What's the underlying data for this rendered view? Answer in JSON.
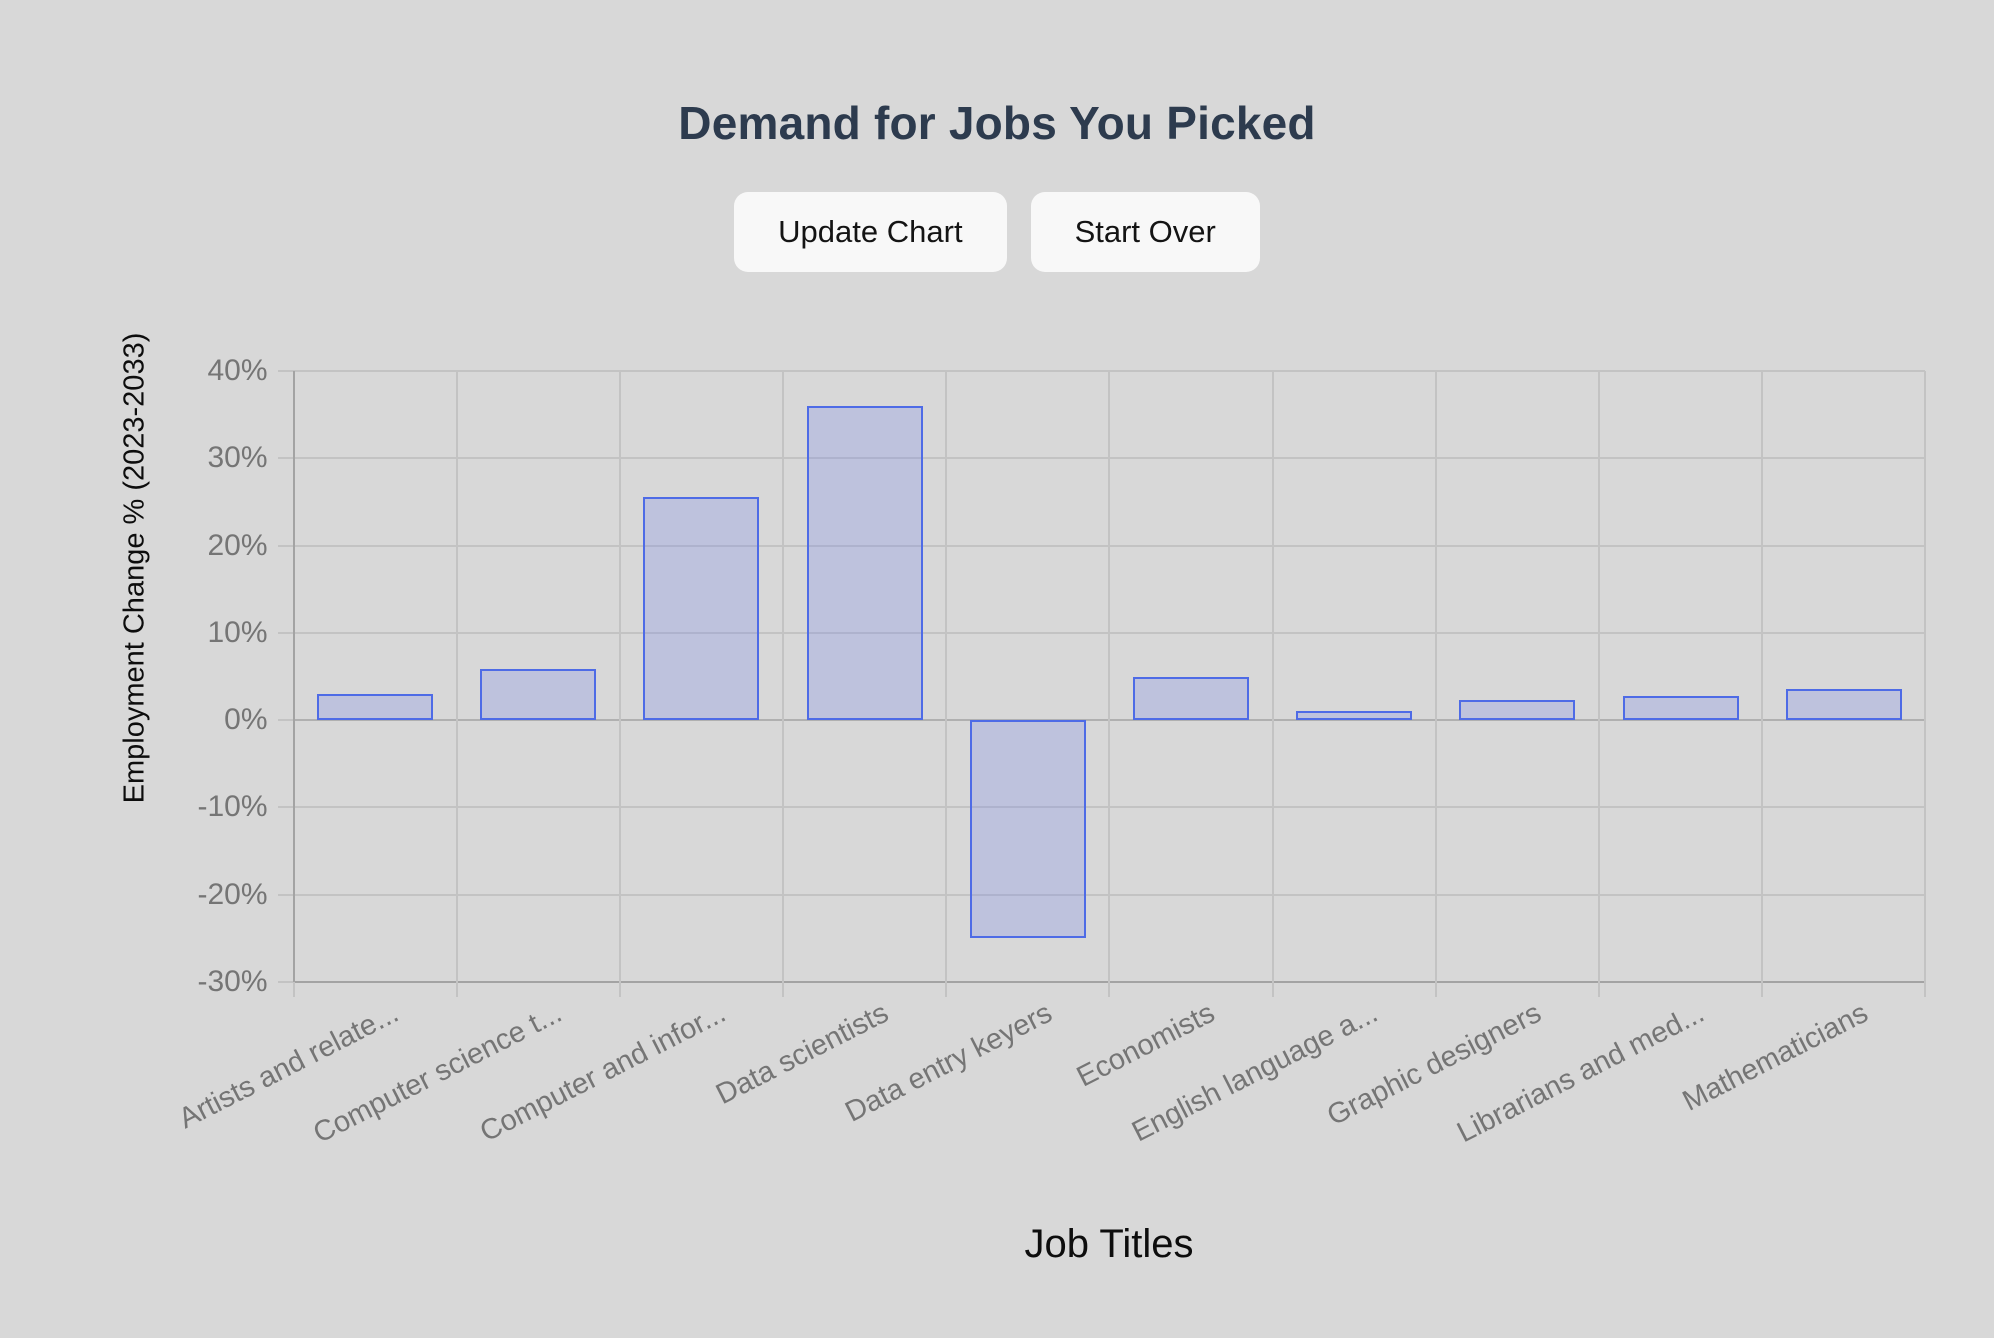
{
  "header": {
    "title": "Demand for Jobs You Picked"
  },
  "toolbar": {
    "update_chart_label": "Update Chart",
    "start_over_label": "Start Over"
  },
  "chart_data": {
    "type": "bar",
    "title": "",
    "xlabel": "Job Titles",
    "ylabel": "Employment Change % (2023-2033)",
    "categories": [
      "Artists and relate...",
      "Computer science t...",
      "Computer and infor...",
      "Data scientists",
      "Data entry keyers",
      "Economists",
      "English language a...",
      "Graphic designers",
      "Librarians and med...",
      "Mathematicians"
    ],
    "values": [
      3,
      5.9,
      25.6,
      36,
      -25,
      5,
      1,
      2.3,
      2.8,
      3.6
    ],
    "ylim": [
      -30,
      40
    ],
    "ytick_values": [
      40,
      30,
      20,
      10,
      0,
      -10,
      -20,
      -30
    ],
    "ytick_labels": [
      "40%",
      "30%",
      "20%",
      "10%",
      "0%",
      "-10%",
      "-20%",
      "-30%"
    ],
    "grid": true,
    "legend": "none",
    "colors": {
      "bar_fill": "rgba(99,117,240,0.22)",
      "bar_border": "#4e6be6",
      "grid": "#c3c3c3",
      "axis": "#a3a3a3",
      "zero_line": "#b0b0b0",
      "tick_text": "#757575",
      "axis_title_text": "#0d0d0d"
    }
  },
  "page": {
    "background": "#d8d8d8",
    "title_color": "#2d3b4e",
    "button_bg": "#f8f8f8",
    "button_text_color": "#141414"
  }
}
